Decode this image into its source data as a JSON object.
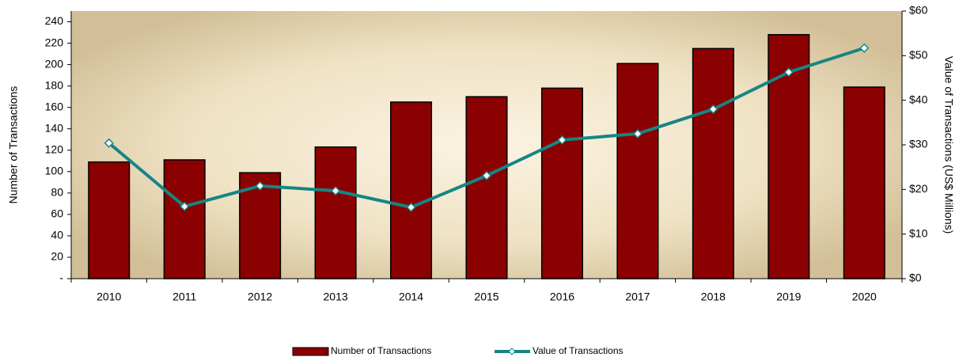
{
  "chart_data": {
    "type": "bar-line",
    "ylabel": "Number of Transactions",
    "y2label": "Value of Transactions (US$ Millions)",
    "categories": [
      "2010",
      "2011",
      "2012",
      "2013",
      "2014",
      "2015",
      "2016",
      "2017",
      "2018",
      "2019",
      "2020"
    ],
    "series": [
      {
        "name": "Number of Transactions",
        "type": "bar",
        "color": "#8b0000",
        "values": [
          109,
          111,
          99,
          123,
          165,
          170,
          178,
          201,
          215,
          228,
          179
        ]
      },
      {
        "name": "Value of Transactions",
        "type": "line",
        "axis": "y2",
        "color": "#168584",
        "values": [
          30.4,
          16.2,
          20.8,
          19.7,
          16.0,
          23.1,
          31.1,
          32.5,
          38.0,
          46.3,
          51.7
        ]
      }
    ],
    "ylim": [
      0,
      250
    ],
    "yticks": [
      {
        "value": 0,
        "label": "-"
      },
      20,
      40,
      60,
      80,
      100,
      120,
      140,
      160,
      180,
      200,
      220,
      240
    ],
    "y2lim": [
      0,
      60
    ],
    "y2ticks": [
      {
        "value": 0,
        "label": "$0"
      },
      {
        "value": 10,
        "label": "$10"
      },
      {
        "value": 20,
        "label": "$20"
      },
      {
        "value": 30,
        "label": "$30"
      },
      {
        "value": 40,
        "label": "$40"
      },
      {
        "value": 50,
        "label": "$50"
      },
      {
        "value": 60,
        "label": "$60"
      }
    ],
    "legend": "bottom"
  }
}
